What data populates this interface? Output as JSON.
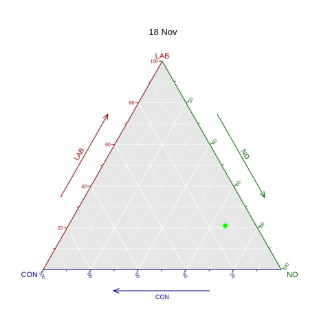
{
  "chart_data": {
    "type": "scatter",
    "subtype": "ternary",
    "title": "18 Nov",
    "vertices": {
      "top": "LAB",
      "left": "CON",
      "right": "NO"
    },
    "axes": {
      "LAB": {
        "label": "LAB",
        "ticks": [
          "20",
          "40",
          "60",
          "80",
          "100"
        ],
        "color": "#8b0000"
      },
      "NO": {
        "label": "NO",
        "ticks": [
          "20",
          "40",
          "60",
          "80",
          "100"
        ],
        "color": "#006400"
      },
      "CON": {
        "label": "CON",
        "ticks": [
          "100",
          "80",
          "60",
          "40",
          "20"
        ],
        "color": "#00008b"
      }
    },
    "grid": true,
    "background": "#e6e6e6",
    "grid_color": "#ffffff",
    "points": [
      {
        "LAB": 21,
        "NO": 66,
        "CON": 13,
        "color": "#00ff00"
      }
    ]
  }
}
